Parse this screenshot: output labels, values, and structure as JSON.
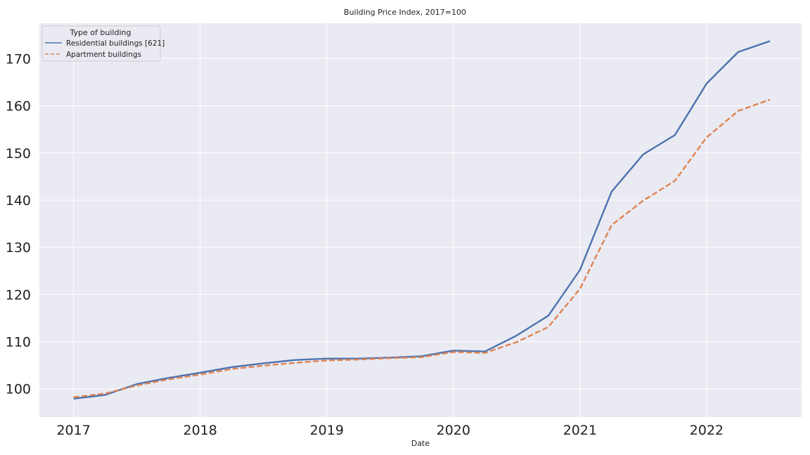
{
  "chart_data": {
    "type": "line",
    "title": "Building Price Index, 2017=100",
    "xlabel": "Date",
    "ylabel": "",
    "x_ticks": [
      2017,
      2018,
      2019,
      2020,
      2021,
      2022
    ],
    "y_ticks": [
      100,
      110,
      120,
      130,
      140,
      150,
      160,
      170
    ],
    "xlim": [
      2016.73,
      2022.75
    ],
    "ylim": [
      94,
      177.5
    ],
    "grid": true,
    "legend": {
      "title": "Type of building",
      "placement": "top-left"
    },
    "x": [
      2017.0,
      2017.25,
      2017.5,
      2017.75,
      2018.0,
      2018.25,
      2018.5,
      2018.75,
      2019.0,
      2019.25,
      2019.5,
      2019.75,
      2020.0,
      2020.25,
      2020.5,
      2020.75,
      2021.0,
      2021.25,
      2021.5,
      2021.75,
      2022.0,
      2022.25,
      2022.5
    ],
    "series": [
      {
        "name": "Residential buildings [621]",
        "color": "#4c72b0",
        "dash": "solid",
        "values": [
          97.9,
          98.7,
          101.0,
          102.3,
          103.4,
          104.6,
          105.4,
          106.1,
          106.4,
          106.4,
          106.6,
          106.9,
          108.1,
          107.9,
          111.3,
          115.5,
          125.2,
          141.8,
          149.7,
          153.8,
          164.7,
          171.4,
          173.7
        ]
      },
      {
        "name": "Apartment buildings",
        "color": "#dd8452",
        "dash": "dashed",
        "values": [
          98.2,
          99.0,
          100.7,
          102.0,
          103.0,
          104.2,
          104.9,
          105.5,
          106.0,
          106.2,
          106.5,
          106.7,
          107.8,
          107.6,
          109.9,
          113.1,
          121.2,
          134.7,
          139.9,
          144.1,
          153.3,
          158.9,
          161.3
        ]
      }
    ]
  }
}
